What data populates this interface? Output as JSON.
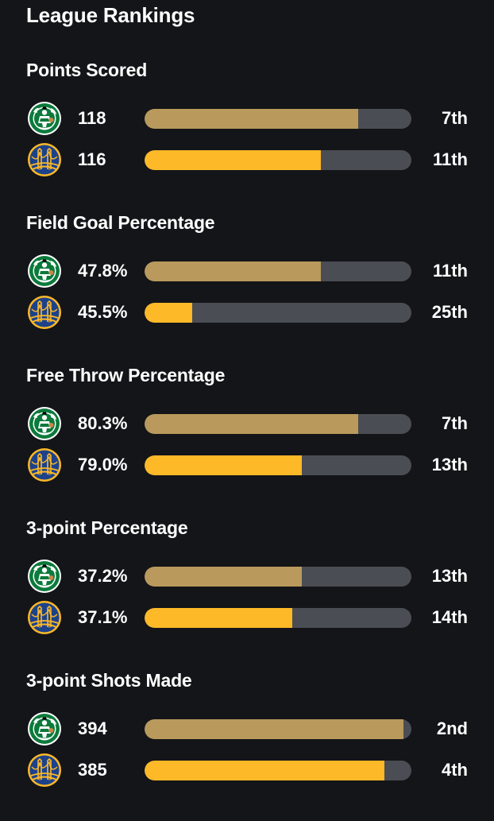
{
  "title": "League Rankings",
  "colors": {
    "background": "#141518",
    "track": "#4a4d53",
    "celtics_bar": "#b99a5c",
    "warriors_bar": "#fdb927"
  },
  "teams": [
    {
      "id": "celtics",
      "icon": "boston-celtics-logo-icon"
    },
    {
      "id": "warriors",
      "icon": "golden-state-warriors-logo-icon"
    }
  ],
  "sections": [
    {
      "title": "Points Scored",
      "rows": [
        {
          "team": "celtics",
          "value": "118",
          "rank": "7th",
          "fill": 0.8
        },
        {
          "team": "warriors",
          "value": "116",
          "rank": "11th",
          "fill": 0.66
        }
      ]
    },
    {
      "title": "Field Goal Percentage",
      "rows": [
        {
          "team": "celtics",
          "value": "47.8%",
          "rank": "11th",
          "fill": 0.66
        },
        {
          "team": "warriors",
          "value": "45.5%",
          "rank": "25th",
          "fill": 0.18
        }
      ]
    },
    {
      "title": "Free Throw Percentage",
      "rows": [
        {
          "team": "celtics",
          "value": "80.3%",
          "rank": "7th",
          "fill": 0.8
        },
        {
          "team": "warriors",
          "value": "79.0%",
          "rank": "13th",
          "fill": 0.59
        }
      ]
    },
    {
      "title": "3-point Percentage",
      "rows": [
        {
          "team": "celtics",
          "value": "37.2%",
          "rank": "13th",
          "fill": 0.59
        },
        {
          "team": "warriors",
          "value": "37.1%",
          "rank": "14th",
          "fill": 0.555
        }
      ]
    },
    {
      "title": "3-point Shots Made",
      "rows": [
        {
          "team": "celtics",
          "value": "394",
          "rank": "2nd",
          "fill": 0.97
        },
        {
          "team": "warriors",
          "value": "385",
          "rank": "4th",
          "fill": 0.9
        }
      ]
    }
  ]
}
